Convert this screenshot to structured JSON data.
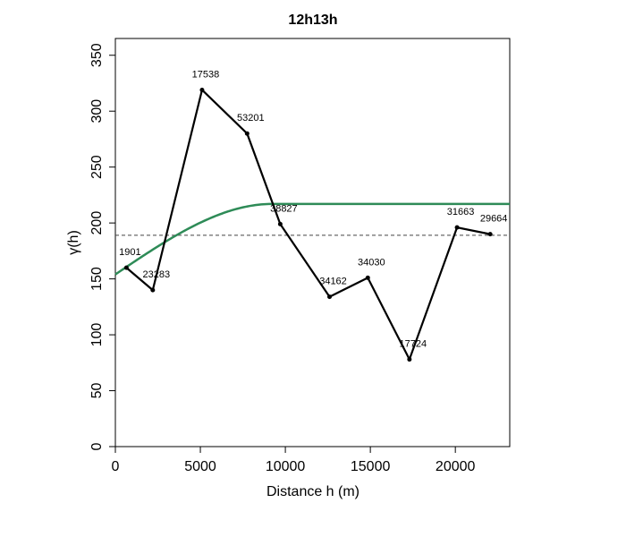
{
  "chart_data": {
    "type": "line",
    "title": "12h13h",
    "xlabel": "Distance h (m)",
    "ylabel": "γ(h)",
    "xlim": [
      0,
      23200
    ],
    "ylim": [
      0,
      365
    ],
    "xticks": [
      0,
      5000,
      10000,
      15000,
      20000
    ],
    "yticks": [
      0,
      50,
      100,
      150,
      200,
      250,
      300,
      350
    ],
    "grid": false,
    "legend": "none",
    "sill_line": {
      "y": 189,
      "style": "dashed",
      "color": "#444444"
    },
    "series": [
      {
        "kind": "empirical",
        "color": "#000000",
        "points": [
          {
            "x": 650,
            "y": 160,
            "label": "1901"
          },
          {
            "x": 2200,
            "y": 140,
            "label": "23283"
          },
          {
            "x": 5100,
            "y": 319,
            "label": "17538"
          },
          {
            "x": 7750,
            "y": 280,
            "label": "53201"
          },
          {
            "x": 9700,
            "y": 199,
            "label": "38827"
          },
          {
            "x": 12600,
            "y": 134,
            "label": "34162"
          },
          {
            "x": 14850,
            "y": 151,
            "label": "34030"
          },
          {
            "x": 17300,
            "y": 78,
            "label": "17724"
          },
          {
            "x": 20100,
            "y": 196,
            "label": "31663"
          },
          {
            "x": 22050,
            "y": 190,
            "label": "29664"
          }
        ]
      },
      {
        "kind": "model",
        "color": "#2e8b57",
        "nugget": 154,
        "sill": 217,
        "range": 9200,
        "model": "spherical"
      }
    ]
  }
}
